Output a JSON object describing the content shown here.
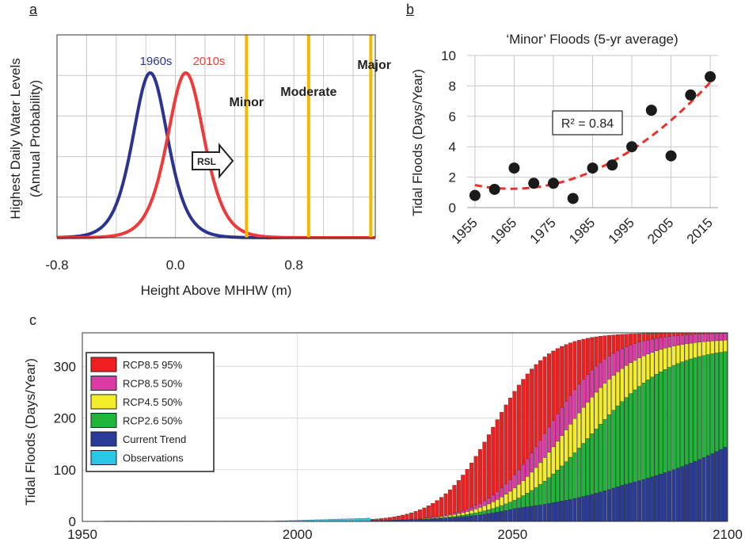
{
  "colors": {
    "blue_1960s": "#2b3591",
    "red_2010s": "#f03a3a",
    "threshold": "#f5b800",
    "trend": "#e8312a",
    "grid": "#c8c8c8"
  },
  "chart_data": [
    {
      "panel": "a",
      "type": "line",
      "xlabel": "Height Above MHHW (m)",
      "ylabel": "Highest Daily Water Levels",
      "ylabel2": "(Annual Probability)",
      "xlim": [
        -0.8,
        1.35
      ],
      "xticks": [
        "-0.8",
        "0.0",
        "0.8"
      ],
      "xtick_values": [
        -0.8,
        0.0,
        0.8
      ],
      "grid": true,
      "series": [
        {
          "name": "1960s",
          "peak_x": -0.17,
          "spread": 0.2,
          "color": "#2b3591"
        },
        {
          "name": "2010s",
          "peak_x": 0.07,
          "spread": 0.21,
          "color": "#f03a3a"
        }
      ],
      "thresholds": [
        {
          "name": "Minor",
          "x": 0.48
        },
        {
          "name": "Moderate",
          "x": 0.9
        },
        {
          "name": "Major",
          "x": 1.32
        }
      ],
      "arrow_label": "RSL"
    },
    {
      "panel": "b",
      "type": "scatter",
      "title": "‘Minor’ Floods (5-yr average)",
      "ylabel": "Tidal Floods (Days/Year)",
      "xlim": [
        1953,
        2017
      ],
      "ylim": [
        0,
        10
      ],
      "yticks": [
        "0",
        "2",
        "4",
        "6",
        "8",
        "10"
      ],
      "xticks": [
        "1955",
        "1965",
        "1975",
        "1985",
        "1995",
        "2005",
        "2015"
      ],
      "grid": true,
      "x": [
        1955,
        1960,
        1965,
        1970,
        1975,
        1980,
        1985,
        1990,
        1995,
        2000,
        2005,
        2010,
        2015
      ],
      "y": [
        0.8,
        1.2,
        2.6,
        1.6,
        1.6,
        0.6,
        2.6,
        2.8,
        4.0,
        6.4,
        3.4,
        7.4,
        8.6
      ],
      "trendline": {
        "type": "quadratic",
        "label": "R² = 0.84"
      }
    },
    {
      "panel": "c",
      "type": "bar",
      "stacked": true,
      "ylabel": "Tidal Floods (Days/Year)",
      "xlim": [
        1950,
        2100
      ],
      "ylim": [
        0,
        365
      ],
      "xticks": [
        "1950",
        "2000",
        "2050",
        "2100"
      ],
      "yticks": [
        "0",
        "100",
        "200",
        "300"
      ],
      "legend_position": "top-left",
      "series": [
        {
          "name": "RCP8.5 95%",
          "color": "#f01e1e",
          "midpoint_year": 2045,
          "rate": 0.16
        },
        {
          "name": "RCP8.5 50%",
          "color": "#dd3aa6",
          "midpoint_year": 2058,
          "rate": 0.14
        },
        {
          "name": "RCP4.5 50%",
          "color": "#f4ee2a",
          "midpoint_year": 2062,
          "rate": 0.125
        },
        {
          "name": "RCP2.6 50%",
          "color": "#1fb53a",
          "midpoint_year": 2068,
          "rate": 0.11
        },
        {
          "name": "Current Trend",
          "color": "#2b3b9a",
          "values_at": {
            "2020": 2,
            "2050": 25,
            "2075": 70,
            "2100": 148
          }
        },
        {
          "name": "Observations",
          "color": "#29c6e6",
          "values_at": {
            "1995": 2,
            "2015": 6
          }
        }
      ]
    }
  ],
  "panels": {
    "a": "a",
    "b": "b",
    "c": "c"
  }
}
